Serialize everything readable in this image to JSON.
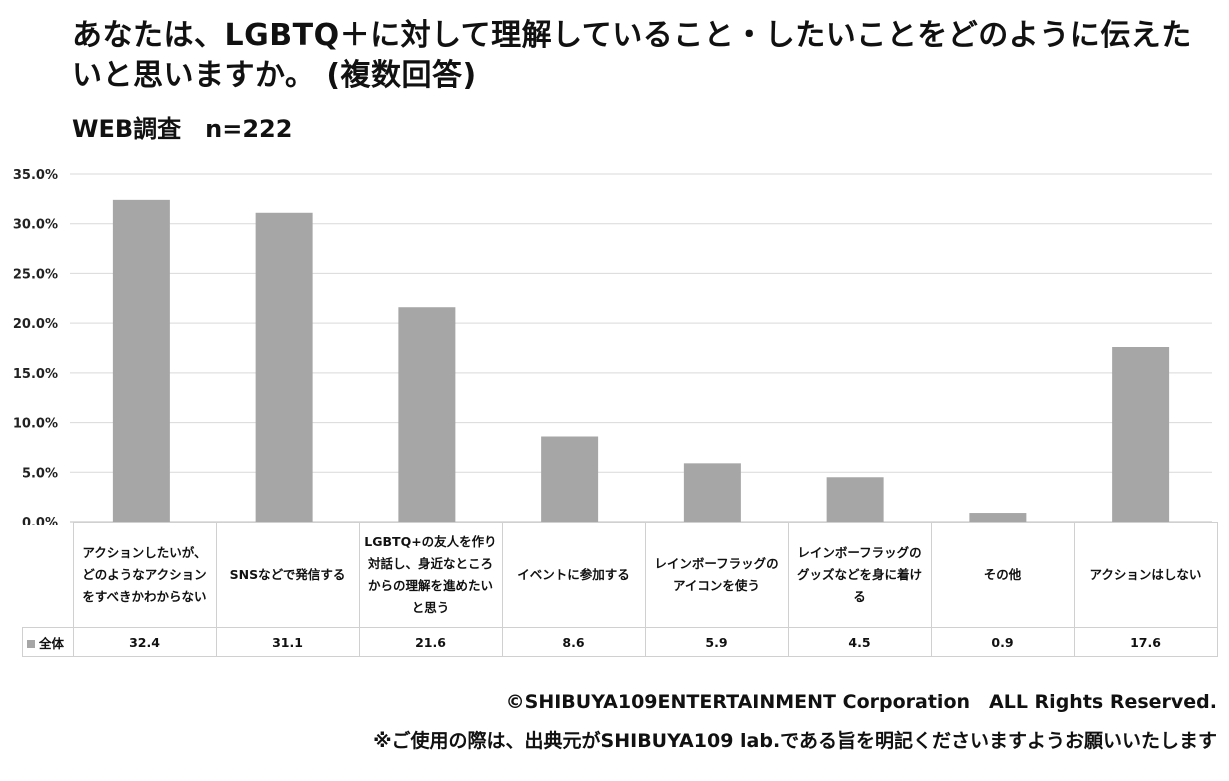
{
  "title": "あなたは、LGBTQ＋に対して理解していること・したいことをどのように伝えたいと思いますか。 (複数回答)",
  "subtitle": "WEB調査　n=222",
  "chart_data": {
    "type": "bar",
    "categories": [
      "アクションしたいが、どのようなアクションをすべきかわからない",
      "SNSなどで発信する",
      "LGBTQ+の友人を作り対話し、身近なところからの理解を進めたいと思う",
      "イベントに参加する",
      "レインボーフラッグのアイコンを使う",
      "レインボーフラッグのグッズなどを身に着ける",
      "その他",
      "アクションはしない"
    ],
    "series": [
      {
        "name": "全体",
        "values": [
          32.4,
          31.1,
          21.6,
          8.6,
          5.9,
          4.5,
          0.9,
          17.6
        ]
      }
    ],
    "value_labels": [
      "32.4",
      "31.1",
      "21.6",
      "8.6",
      "5.9",
      "4.5",
      "0.9",
      "17.6"
    ],
    "ylim": [
      0,
      35
    ],
    "yticks": [
      "0.0%",
      "5.0%",
      "10.0%",
      "15.0%",
      "20.0%",
      "25.0%",
      "30.0%",
      "35.0%"
    ],
    "grid": true,
    "legend": "data-table",
    "bar_color": "#a6a6a6",
    "grid_color": "#d9d9d9"
  },
  "footer": {
    "copyright": "©SHIBUYA109ENTERTAINMENT Corporation　ALL Rights Reserved.",
    "note": "※ご使用の際は、出典元がSHIBUYA109 lab.である旨を明記くださいますようお願いいたします"
  }
}
